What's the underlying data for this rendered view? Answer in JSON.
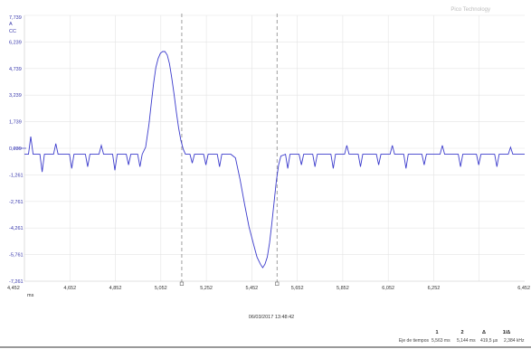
{
  "watermark": "Pico Technology",
  "timestamp": "06/03/2017 13:48:42",
  "y_unit": "A",
  "y_coupling": "CC",
  "x_unit": "ms",
  "measurements": {
    "label": "Eje de tiempos",
    "headers": [
      "1",
      "2",
      "Δ",
      "1/Δ"
    ],
    "values": [
      "5,563 ms",
      "5,144 ms",
      "419,5 µs",
      "2,384 kHz"
    ]
  },
  "chart_data": {
    "type": "line",
    "title": "",
    "xlabel": "ms",
    "ylabel": "A",
    "xlim": [
      4.452,
      6.652
    ],
    "ylim": [
      -7.261,
      7.739
    ],
    "x_ticks": [
      "4,452",
      "4,652",
      "4,852",
      "5,052",
      "5,252",
      "5,452",
      "5,652",
      "5,852",
      "6,052",
      "6,252",
      "6,452"
    ],
    "x_tick_values": [
      4.452,
      4.652,
      4.852,
      5.052,
      5.252,
      5.452,
      5.652,
      5.852,
      6.052,
      6.252,
      6.452
    ],
    "y_ticks": [
      "7,739",
      "6,239",
      "4,739",
      "3,239",
      "1,739",
      "0,239",
      "-1,261",
      "-2,761",
      "-4,261",
      "-5,761",
      "-7,261"
    ],
    "y_tick_values": [
      7.739,
      6.239,
      4.739,
      3.239,
      1.739,
      0.239,
      -1.261,
      -2.761,
      -4.261,
      -5.761,
      -7.261
    ],
    "cursors": [
      {
        "name": "1",
        "x": 5.144
      },
      {
        "name": "2",
        "x": 5.563
      }
    ],
    "trigger_level": 0.239,
    "grid": true,
    "color": "#3b3bcc",
    "series": [
      {
        "values": [
          [
            4.452,
            -0.1
          ],
          [
            4.47,
            -0.1
          ],
          [
            4.48,
            0.9
          ],
          [
            4.49,
            -0.1
          ],
          [
            4.52,
            -0.1
          ],
          [
            4.53,
            -1.1
          ],
          [
            4.54,
            -0.1
          ],
          [
            4.58,
            -0.1
          ],
          [
            4.59,
            0.5
          ],
          [
            4.6,
            -0.1
          ],
          [
            4.65,
            -0.1
          ],
          [
            4.66,
            -0.9
          ],
          [
            4.67,
            -0.1
          ],
          [
            4.72,
            -0.1
          ],
          [
            4.73,
            -0.8
          ],
          [
            4.74,
            -0.1
          ],
          [
            4.78,
            -0.1
          ],
          [
            4.79,
            0.4
          ],
          [
            4.8,
            -0.1
          ],
          [
            4.84,
            -0.1
          ],
          [
            4.85,
            -1.0
          ],
          [
            4.86,
            -0.1
          ],
          [
            4.9,
            -0.1
          ],
          [
            4.91,
            -0.7
          ],
          [
            4.92,
            -0.1
          ],
          [
            4.95,
            -0.1
          ],
          [
            4.96,
            -0.8
          ],
          [
            4.97,
            -0.1
          ],
          [
            4.985,
            0.3
          ],
          [
            5.0,
            1.6
          ],
          [
            5.01,
            2.8
          ],
          [
            5.02,
            3.9
          ],
          [
            5.03,
            4.8
          ],
          [
            5.04,
            5.3
          ],
          [
            5.05,
            5.6
          ],
          [
            5.06,
            5.7
          ],
          [
            5.07,
            5.7
          ],
          [
            5.08,
            5.5
          ],
          [
            5.09,
            5.0
          ],
          [
            5.1,
            4.2
          ],
          [
            5.11,
            3.3
          ],
          [
            5.12,
            2.3
          ],
          [
            5.13,
            1.4
          ],
          [
            5.14,
            0.7
          ],
          [
            5.15,
            0.2
          ],
          [
            5.16,
            -0.1
          ],
          [
            5.18,
            -0.1
          ],
          [
            5.19,
            -0.6
          ],
          [
            5.2,
            -0.1
          ],
          [
            5.24,
            -0.1
          ],
          [
            5.25,
            -0.7
          ],
          [
            5.26,
            -0.1
          ],
          [
            5.3,
            -0.1
          ],
          [
            5.31,
            -0.8
          ],
          [
            5.32,
            -0.1
          ],
          [
            5.36,
            -0.1
          ],
          [
            5.38,
            -0.3
          ],
          [
            5.4,
            -1.5
          ],
          [
            5.42,
            -2.9
          ],
          [
            5.44,
            -4.2
          ],
          [
            5.46,
            -5.2
          ],
          [
            5.475,
            -5.9
          ],
          [
            5.49,
            -6.3
          ],
          [
            5.5,
            -6.5
          ],
          [
            5.51,
            -6.3
          ],
          [
            5.52,
            -5.9
          ],
          [
            5.53,
            -5.1
          ],
          [
            5.54,
            -4.0
          ],
          [
            5.55,
            -2.8
          ],
          [
            5.56,
            -1.6
          ],
          [
            5.57,
            -0.7
          ],
          [
            5.58,
            -0.2
          ],
          [
            5.6,
            -0.1
          ],
          [
            5.61,
            -0.9
          ],
          [
            5.62,
            -0.1
          ],
          [
            5.66,
            -0.1
          ],
          [
            5.67,
            -0.7
          ],
          [
            5.68,
            -0.1
          ],
          [
            5.72,
            -0.1
          ],
          [
            5.73,
            -0.8
          ],
          [
            5.74,
            -0.1
          ],
          [
            5.8,
            -0.1
          ],
          [
            5.81,
            -0.9
          ],
          [
            5.82,
            -0.1
          ],
          [
            5.86,
            -0.1
          ],
          [
            5.87,
            0.4
          ],
          [
            5.88,
            -0.1
          ],
          [
            5.92,
            -0.1
          ],
          [
            5.93,
            -0.8
          ],
          [
            5.94,
            -0.1
          ],
          [
            6.0,
            -0.1
          ],
          [
            6.01,
            -0.7
          ],
          [
            6.02,
            -0.1
          ],
          [
            6.06,
            -0.1
          ],
          [
            6.07,
            0.4
          ],
          [
            6.08,
            -0.1
          ],
          [
            6.12,
            -0.1
          ],
          [
            6.13,
            -0.9
          ],
          [
            6.14,
            -0.1
          ],
          [
            6.2,
            -0.1
          ],
          [
            6.21,
            -0.7
          ],
          [
            6.22,
            -0.1
          ],
          [
            6.28,
            -0.1
          ],
          [
            6.29,
            0.4
          ],
          [
            6.3,
            -0.1
          ],
          [
            6.36,
            -0.1
          ],
          [
            6.37,
            -0.8
          ],
          [
            6.38,
            -0.1
          ],
          [
            6.44,
            -0.1
          ],
          [
            6.45,
            -0.7
          ],
          [
            6.46,
            -0.1
          ],
          [
            6.52,
            -0.1
          ],
          [
            6.53,
            -0.8
          ],
          [
            6.54,
            -0.1
          ],
          [
            6.58,
            -0.1
          ],
          [
            6.59,
            0.3
          ],
          [
            6.6,
            -0.1
          ],
          [
            6.652,
            -0.1
          ]
        ]
      }
    ]
  }
}
